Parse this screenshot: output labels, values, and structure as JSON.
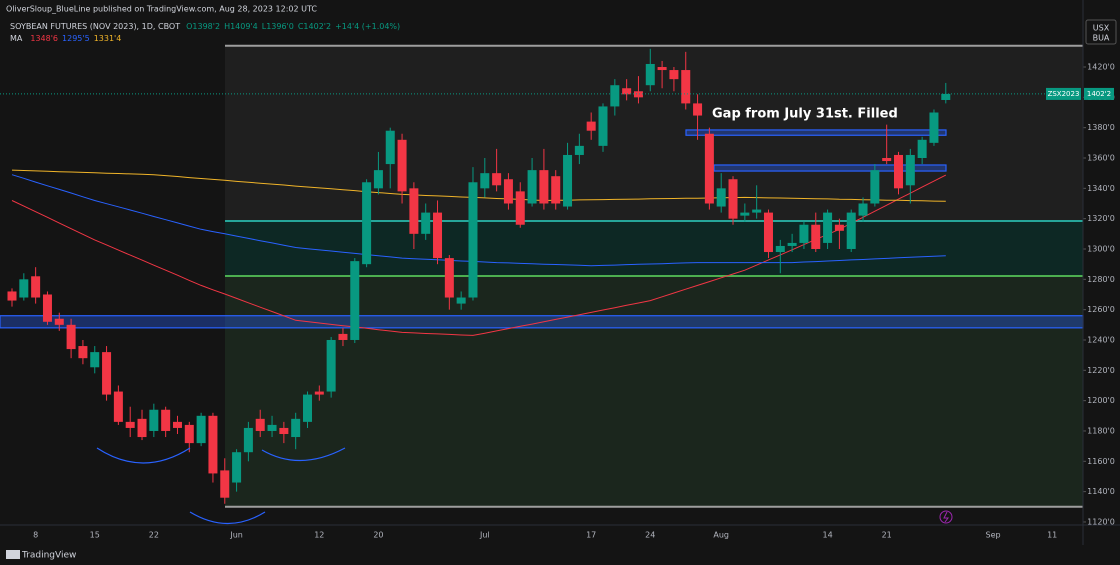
{
  "header": {
    "publisher": "OliverSloup_BlueLine published on TradingView.com, Aug 28, 2023 12:02 UTC",
    "symbol": "SOYBEAN FUTURES (NOV 2023), 1D, CBOT",
    "ohlc": [
      "O1398'2",
      "H1409'4",
      "L1396'0",
      "C1402'2",
      "+14'4 (+1.04%)"
    ],
    "ma_title": "MA",
    "currency": [
      "USX",
      "BUA"
    ],
    "brand": "TradingView"
  },
  "chart_data": {
    "type": "candlestick",
    "annotation": "Gap from July 31st. Filled",
    "categories": [
      null,
      null,
      "8",
      null,
      null,
      null,
      null,
      "15",
      null,
      null,
      null,
      null,
      "22",
      null,
      null,
      null,
      null,
      null,
      null,
      "Jun",
      null,
      null,
      null,
      null,
      null,
      null,
      "12",
      null,
      null,
      null,
      null,
      "20",
      null,
      null,
      null,
      null,
      null,
      null,
      null,
      null,
      "Jul",
      null,
      null,
      null,
      null,
      null,
      null,
      null,
      null,
      "17",
      null,
      null,
      null,
      null,
      "24",
      null,
      null,
      null,
      null,
      null,
      "Aug",
      null,
      null,
      null,
      null,
      null,
      null,
      null,
      null,
      "14",
      null,
      null,
      null,
      null,
      "21",
      null,
      null,
      null,
      null,
      null,
      null,
      null,
      null,
      "Sep",
      null,
      null,
      null,
      null,
      "11",
      null,
      null
    ],
    "open": [
      1272,
      1268,
      1282,
      1270,
      1254,
      1250,
      1236,
      1222,
      1232,
      1206,
      1186,
      1188,
      1180,
      1194,
      1186,
      1184,
      1172,
      1190,
      1154,
      1146,
      1166,
      1188,
      1180,
      1182,
      1176,
      1186,
      1206,
      1206,
      1244,
      1240,
      1290,
      1340,
      1356,
      1372,
      1340,
      1310,
      1324,
      1294,
      1264,
      1268,
      1340,
      1350,
      1346,
      1338,
      1330,
      1352,
      1348,
      1328,
      1362,
      1384,
      1368,
      1394,
      1406,
      1404,
      1408,
      1420,
      1418,
      1418,
      1396,
      1376,
      1328,
      1346,
      1322,
      1324,
      1324,
      1298,
      1302,
      1304,
      1316,
      1304,
      1316,
      1300,
      1322,
      1330,
      1360,
      1362,
      1342,
      1360,
      1370,
      1398.25,
      null,
      null,
      null,
      null,
      null,
      null,
      null,
      null,
      null,
      null,
      null
    ],
    "high": [
      1274,
      1284,
      1288,
      1272,
      1258,
      1254,
      1240,
      1236,
      1236,
      1210,
      1196,
      1194,
      1198,
      1196,
      1190,
      1186,
      1192,
      1192,
      1162,
      1168,
      1186,
      1194,
      1190,
      1186,
      1192,
      1206,
      1210,
      1242,
      1248,
      1294,
      1346,
      1364,
      1380,
      1376,
      1344,
      1330,
      1332,
      1296,
      1272,
      1354,
      1360,
      1366,
      1350,
      1344,
      1360,
      1366,
      1352,
      1370,
      1376,
      1390,
      1396,
      1412,
      1412,
      1414,
      1432,
      1424,
      1420,
      1430,
      1402,
      1380,
      1350,
      1348,
      1330,
      1342,
      1326,
      1306,
      1310,
      1318,
      1324,
      1326,
      1320,
      1326,
      1334,
      1356,
      1382,
      1364,
      1366,
      1374,
      1392,
      1409.5,
      null,
      null,
      null,
      null,
      null,
      null,
      null,
      null,
      null,
      null,
      null
    ],
    "low": [
      1262,
      1266,
      1264,
      1250,
      1246,
      1228,
      1224,
      1218,
      1200,
      1184,
      1176,
      1174,
      1176,
      1176,
      1178,
      1166,
      1170,
      1146,
      1132,
      1140,
      1160,
      1176,
      1176,
      1172,
      1168,
      1182,
      1200,
      1202,
      1236,
      1238,
      1288,
      1336,
      1340,
      1330,
      1300,
      1306,
      1290,
      1260,
      1260,
      1266,
      1334,
      1338,
      1326,
      1314,
      1328,
      1326,
      1326,
      1326,
      1356,
      1372,
      1364,
      1388,
      1398,
      1396,
      1404,
      1406,
      1404,
      1392,
      1372,
      1326,
      1324,
      1316,
      1318,
      1320,
      1294,
      1284,
      1298,
      1300,
      1298,
      1300,
      1300,
      1298,
      1318,
      1328,
      1356,
      1336,
      1330,
      1356,
      1368,
      1396,
      null,
      null,
      null,
      null,
      null,
      null,
      null,
      null,
      null,
      null,
      null
    ],
    "close": [
      1266,
      1280,
      1268,
      1252,
      1250,
      1234,
      1228,
      1232,
      1204,
      1186,
      1182,
      1176,
      1194,
      1180,
      1182,
      1172,
      1190,
      1152,
      1136,
      1166,
      1182,
      1180,
      1184,
      1178,
      1188,
      1204,
      1204,
      1240,
      1240,
      1292,
      1344,
      1352,
      1378,
      1338,
      1310,
      1324,
      1294,
      1268,
      1268,
      1344,
      1350,
      1342,
      1330,
      1316,
      1352,
      1330,
      1330,
      1362,
      1368,
      1378,
      1394,
      1408,
      1402,
      1400,
      1422,
      1418,
      1412,
      1396,
      1388,
      1330,
      1340,
      1320,
      1324,
      1326,
      1298,
      1302,
      1304,
      1316,
      1300,
      1324,
      1312,
      1324,
      1330,
      1352,
      1358,
      1340,
      1362,
      1372,
      1390,
      1402.25,
      null,
      null,
      null,
      null,
      null,
      null,
      null,
      null,
      null,
      null,
      null
    ],
    "up_color": "#089981",
    "down_color": "#f23645",
    "series": [
      {
        "value_label": "1348'6",
        "color": "#f23645",
        "values": [
          1332,
          1328.3,
          1324.6,
          1320.9,
          1317.1,
          1313.4,
          1309.7,
          1306,
          1302.7,
          1299.3,
          1296,
          1292.7,
          1289.3,
          1286,
          1282.7,
          1279.3,
          1276,
          1273.1,
          1270.3,
          1267.4,
          1264.5,
          1261.6,
          1258.8,
          1255.9,
          1253,
          1252.1,
          1251.2,
          1250.3,
          1249.4,
          1248.6,
          1247.7,
          1246.8,
          1245.9,
          1245,
          1244.7,
          1244.3,
          1244,
          1243.7,
          1243.3,
          1243,
          1244.5,
          1246,
          1247.5,
          1249,
          1250.5,
          1252,
          1253.6,
          1255.1,
          1256.7,
          1258.2,
          1259.8,
          1261.3,
          1262.9,
          1264.4,
          1266,
          1268.5,
          1271,
          1273.5,
          1276,
          1278.5,
          1281,
          1283.5,
          1286,
          1289.4,
          1292.8,
          1296.1,
          1299.5,
          1302.9,
          1306.3,
          1309.6,
          1313,
          1317,
          1320.9,
          1324.9,
          1328.9,
          1332.9,
          1336.8,
          1340.8,
          1344.8,
          1348.75,
          null,
          null,
          null,
          null,
          null,
          null,
          null,
          null,
          null,
          null,
          null
        ]
      },
      {
        "value_label": "1295'5",
        "color": "#2962ff",
        "values": [
          1349,
          1346.6,
          1344.1,
          1341.7,
          1339.3,
          1336.9,
          1334.4,
          1332,
          1329.9,
          1327.8,
          1325.7,
          1323.6,
          1321.4,
          1319.3,
          1317.2,
          1315.1,
          1313,
          1311.5,
          1310,
          1308.5,
          1307,
          1305.5,
          1304,
          1302.5,
          1301,
          1300.2,
          1299.4,
          1298.7,
          1297.9,
          1297.1,
          1296.3,
          1295.6,
          1294.8,
          1294,
          1293.6,
          1293.3,
          1292.9,
          1292.5,
          1292.1,
          1291.8,
          1291.4,
          1291,
          1290.8,
          1290.5,
          1290.3,
          1290,
          1289.8,
          1289.5,
          1289.3,
          1289,
          1289.2,
          1289.4,
          1289.7,
          1289.9,
          1290.1,
          1290.3,
          1290.6,
          1290.8,
          1291,
          1291,
          1291,
          1291,
          1291,
          1291,
          1291,
          1291,
          1291,
          1291.4,
          1291.7,
          1292.1,
          1292.4,
          1292.8,
          1293.1,
          1293.5,
          1293.8,
          1294.2,
          1294.5,
          1294.9,
          1295.2,
          1295.6,
          null,
          null,
          null,
          null,
          null,
          null,
          null,
          null,
          null,
          null,
          null
        ]
      },
      {
        "value_label": "1331'4",
        "color": "#f0b429",
        "values": [
          1352,
          1351.75,
          1351.5,
          1351.25,
          1351,
          1350.75,
          1350.5,
          1350.25,
          1350,
          1349.75,
          1349.5,
          1349.25,
          1349,
          1348.4,
          1347.8,
          1347.1,
          1346.5,
          1345.9,
          1345.3,
          1344.6,
          1344,
          1343.4,
          1342.8,
          1342.2,
          1341.5,
          1340.9,
          1340.3,
          1339.7,
          1339.1,
          1338.5,
          1337.8,
          1337.2,
          1336.6,
          1336,
          1335.7,
          1335.3,
          1335,
          1334.7,
          1334.3,
          1334,
          1333.7,
          1333.3,
          1333,
          1332.7,
          1332.3,
          1332,
          1332.1,
          1332.2,
          1332.4,
          1332.5,
          1332.6,
          1332.7,
          1332.8,
          1332.9,
          1333.1,
          1333.2,
          1333.3,
          1333.4,
          1333.5,
          1333.6,
          1333.8,
          1333.9,
          1334,
          1333.9,
          1333.7,
          1333.6,
          1333.4,
          1333.3,
          1333.1,
          1333,
          1332.8,
          1332.7,
          1332.5,
          1332.4,
          1332.2,
          1332.1,
          1331.9,
          1331.8,
          1331.6,
          1331.5,
          null,
          null,
          null,
          null,
          null,
          null,
          null,
          null,
          null,
          null,
          null
        ]
      }
    ],
    "ylim": [
      1118,
      1451
    ],
    "yticks": [
      {
        "value": 1120,
        "label": "1120'0"
      },
      {
        "value": 1140,
        "label": "1140'0"
      },
      {
        "value": 1160,
        "label": "1160'0"
      },
      {
        "value": 1180,
        "label": "1180'0"
      },
      {
        "value": 1200,
        "label": "1200'0"
      },
      {
        "value": 1220,
        "label": "1220'0"
      },
      {
        "value": 1240,
        "label": "1240'0"
      },
      {
        "value": 1260,
        "label": "1260'0"
      },
      {
        "value": 1280,
        "label": "1280'0"
      },
      {
        "value": 1300,
        "label": "1300'0"
      },
      {
        "value": 1320,
        "label": "1320'0"
      },
      {
        "value": 1340,
        "label": "1340'0"
      },
      {
        "value": 1360,
        "label": "1360'0"
      },
      {
        "value": 1380,
        "label": "1380'0"
      },
      {
        "value": 1400,
        "label": "1400'0"
      },
      {
        "value": 1420,
        "label": "1420'0"
      }
    ],
    "grid": false,
    "shaded_regions": [
      {
        "low": 1318.5,
        "high": 1434,
        "color": "#1f1f1f"
      },
      {
        "low": 1282.2,
        "high": 1318.5,
        "color": "#0d2824"
      },
      {
        "low": 1130,
        "high": 1282.2,
        "color": "#1b261d"
      }
    ],
    "levels": [
      {
        "value": 1434,
        "color": "#9e9e9e"
      },
      {
        "value": 1130,
        "color": "#9e9e9e"
      },
      {
        "value": 1318.5,
        "color": "#26a69a"
      },
      {
        "value": 1282.2,
        "color": "#4caf50"
      }
    ],
    "zones": [
      {
        "low": 1248,
        "high": 1256,
        "color": "#2962ff"
      },
      {
        "low": 1375,
        "high": 1378.5,
        "color": "#2962ff"
      },
      {
        "low": 1351.4,
        "high": 1355.4,
        "color": "#2962ff"
      }
    ],
    "last_price": {
      "symbol": "ZSX2023",
      "label": "1402'2"
    }
  }
}
